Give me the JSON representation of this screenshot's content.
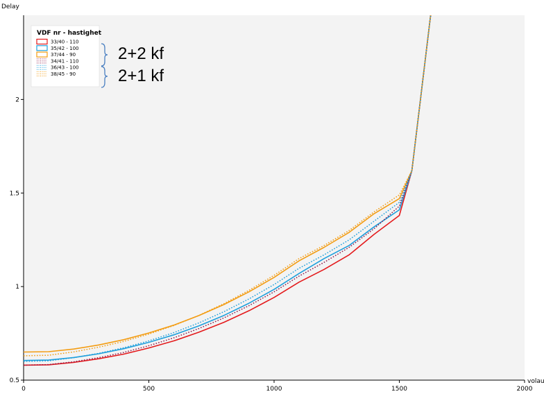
{
  "chart_data": {
    "type": "line",
    "title": "",
    "xlabel": "volau",
    "ylabel": "Delay",
    "xlim": [
      0,
      2000
    ],
    "ylim": [
      0.5,
      2.45
    ],
    "x_ticks": [
      "0",
      "500",
      "1000",
      "1500",
      "2000"
    ],
    "y_ticks": [
      "0.5",
      "1",
      "1.5",
      "2"
    ],
    "legend": {
      "title": "VDF nr - hastighet",
      "placement": "top-left"
    },
    "series": [
      {
        "name": "33/40 - 110",
        "color": "#e41a1c",
        "style": "solid",
        "x": [
          0,
          100,
          200,
          300,
          400,
          500,
          600,
          700,
          800,
          900,
          1000,
          1100,
          1200,
          1300,
          1400,
          1500,
          1550,
          1625
        ],
        "y": [
          0.58,
          0.582,
          0.595,
          0.614,
          0.639,
          0.672,
          0.71,
          0.756,
          0.809,
          0.871,
          0.942,
          1.024,
          1.092,
          1.17,
          1.28,
          1.38,
          1.62,
          2.45
        ]
      },
      {
        "name": "35/42 - 100",
        "color": "#1e9fdc",
        "style": "solid",
        "x": [
          0,
          100,
          200,
          300,
          400,
          500,
          600,
          700,
          800,
          900,
          1000,
          1100,
          1200,
          1300,
          1400,
          1500,
          1550,
          1625
        ],
        "y": [
          0.605,
          0.607,
          0.621,
          0.641,
          0.668,
          0.702,
          0.742,
          0.79,
          0.846,
          0.911,
          0.985,
          1.07,
          1.15,
          1.22,
          1.32,
          1.41,
          1.62,
          2.45
        ]
      },
      {
        "name": "37/44 - 90",
        "color": "#f39c12",
        "style": "solid",
        "x": [
          0,
          100,
          200,
          300,
          400,
          500,
          600,
          700,
          800,
          900,
          1000,
          1100,
          1200,
          1300,
          1400,
          1500,
          1550,
          1625
        ],
        "y": [
          0.65,
          0.652,
          0.666,
          0.688,
          0.716,
          0.752,
          0.794,
          0.845,
          0.904,
          0.972,
          1.049,
          1.138,
          1.21,
          1.29,
          1.39,
          1.47,
          1.62,
          2.45
        ]
      },
      {
        "name": "34/41 - 110",
        "color": "#8e1a4a",
        "style": "dotted",
        "x": [
          0,
          100,
          200,
          300,
          400,
          500,
          600,
          700,
          800,
          900,
          1000,
          1100,
          1200,
          1300,
          1400,
          1500,
          1550,
          1625
        ],
        "y": [
          0.58,
          0.583,
          0.598,
          0.62,
          0.648,
          0.684,
          0.726,
          0.776,
          0.833,
          0.898,
          0.972,
          1.056,
          1.13,
          1.21,
          1.31,
          1.43,
          1.62,
          2.45
        ]
      },
      {
        "name": "36/43 - 100",
        "color": "#1e9fdc",
        "style": "dotted",
        "x": [
          0,
          100,
          200,
          300,
          400,
          500,
          600,
          700,
          800,
          900,
          1000,
          1100,
          1200,
          1300,
          1400,
          1500,
          1550,
          1625
        ],
        "y": [
          0.6,
          0.603,
          0.62,
          0.643,
          0.673,
          0.71,
          0.754,
          0.806,
          0.866,
          0.934,
          1.011,
          1.098,
          1.17,
          1.25,
          1.35,
          1.45,
          1.62,
          2.45
        ]
      },
      {
        "name": "38/45 - 90",
        "color": "#f39c12",
        "style": "dotted",
        "x": [
          0,
          100,
          200,
          300,
          400,
          500,
          600,
          700,
          800,
          900,
          1000,
          1100,
          1200,
          1300,
          1400,
          1500,
          1550,
          1625
        ],
        "y": [
          0.63,
          0.633,
          0.651,
          0.676,
          0.707,
          0.746,
          0.792,
          0.846,
          0.909,
          0.98,
          1.06,
          1.15,
          1.22,
          1.3,
          1.4,
          1.49,
          1.62,
          2.45
        ]
      }
    ],
    "annotations": [
      {
        "text": "2+2 kf",
        "groups": [
          "33/40 - 110",
          "35/42 - 100",
          "37/44 - 90"
        ]
      },
      {
        "text": "2+1 kf",
        "groups": [
          "34/41 - 110",
          "36/43 - 100",
          "38/45 - 90"
        ]
      }
    ],
    "grid": false,
    "plot_background": "#f3f3f3"
  }
}
